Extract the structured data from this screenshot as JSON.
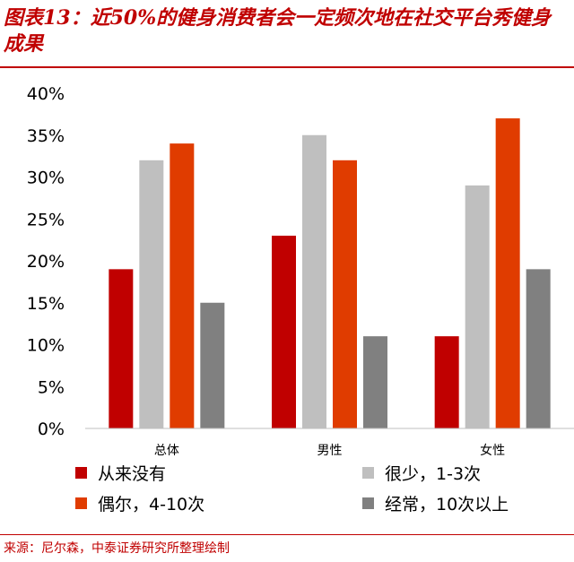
{
  "title": "图表13：近50%的健身消费者会一定频次地在社交平台秀健身成果",
  "source": "来源：尼尔森，中泰证券研究所整理绘制",
  "chart_data": {
    "type": "bar",
    "categories": [
      "总体",
      "男性",
      "女性"
    ],
    "series": [
      {
        "name": "从来没有",
        "values": [
          19,
          23,
          11
        ],
        "color": "#c00000"
      },
      {
        "name": "很少，1-3次",
        "values": [
          32,
          35,
          29
        ],
        "color": "#bfbfbf"
      },
      {
        "name": "偶尔，4-10次",
        "values": [
          34,
          32,
          37
        ],
        "color": "#e03c00"
      },
      {
        "name": "经常，10次以上",
        "values": [
          15,
          11,
          19
        ],
        "color": "#808080"
      }
    ],
    "y_ticks": [
      "0%",
      "5%",
      "10%",
      "15%",
      "20%",
      "25%",
      "30%",
      "35%",
      "40%"
    ],
    "ylim": [
      0,
      40
    ],
    "legend_position": "bottom",
    "grid": false
  }
}
